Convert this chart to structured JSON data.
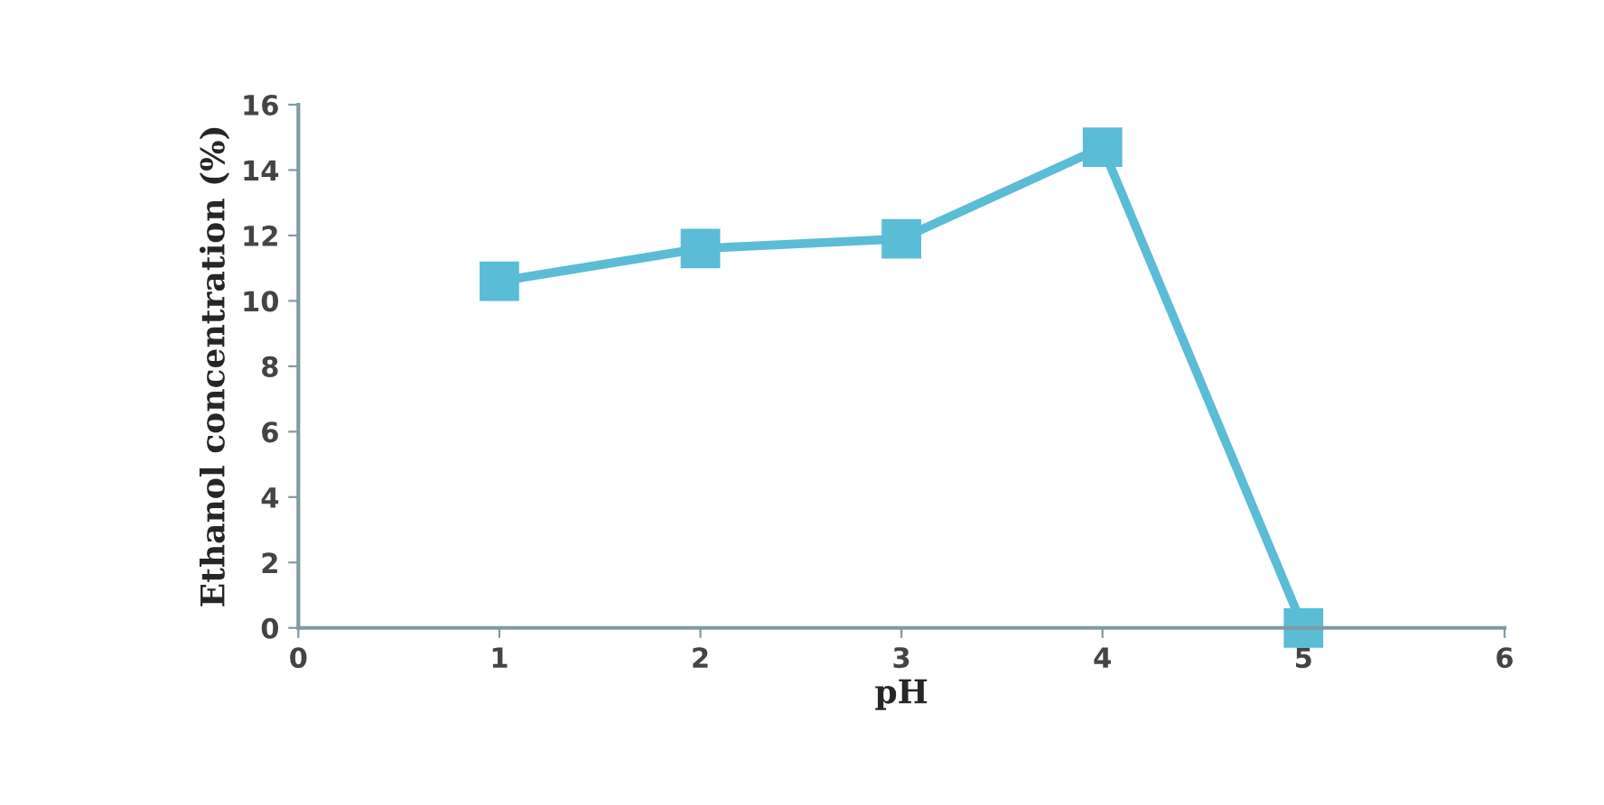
{
  "chart_data": {
    "type": "line",
    "xlabel": "pH",
    "ylabel": "Ethanol concentration (%)",
    "x": [
      1,
      2,
      3,
      4,
      5
    ],
    "series": [
      {
        "color": "#5bbcd6",
        "values": [
          10.6,
          11.6,
          11.9,
          14.7,
          0
        ]
      }
    ],
    "xlim": [
      0,
      6
    ],
    "xticks": [
      0,
      1,
      2,
      3,
      4,
      5,
      6
    ],
    "ylim": [
      0,
      16
    ],
    "yticks": [
      0,
      2,
      4,
      6,
      8,
      10,
      12,
      14,
      16
    ],
    "grid": false,
    "legend": false,
    "marker": "square",
    "line_style": "solid"
  }
}
